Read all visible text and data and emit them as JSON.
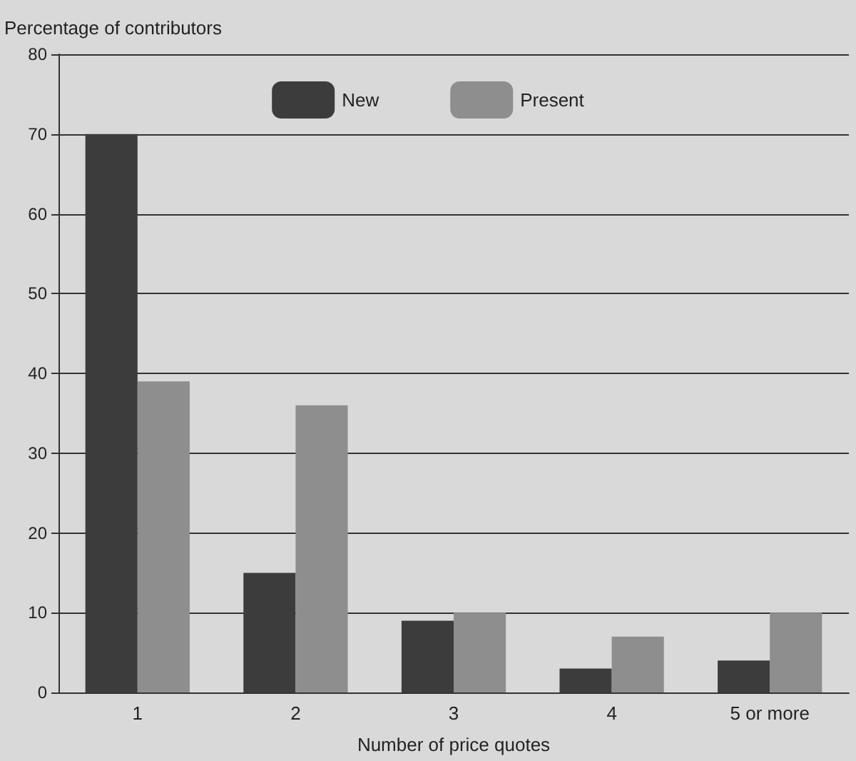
{
  "chart_data": {
    "type": "bar",
    "ylabel": "Percentage of contributors",
    "xlabel": "Number of price quotes",
    "categories": [
      "1",
      "2",
      "3",
      "4",
      "5 or more"
    ],
    "series": [
      {
        "name": "New",
        "color": "#3c3c3c",
        "values": [
          70,
          15,
          9,
          3,
          4
        ]
      },
      {
        "name": "Present",
        "color": "#8e8e8e",
        "values": [
          39,
          36,
          10,
          7,
          10
        ]
      }
    ],
    "ylim": [
      0,
      80
    ],
    "yticks": [
      0,
      10,
      20,
      30,
      40,
      50,
      60,
      70,
      80
    ],
    "grid": "y",
    "legend": "top"
  }
}
